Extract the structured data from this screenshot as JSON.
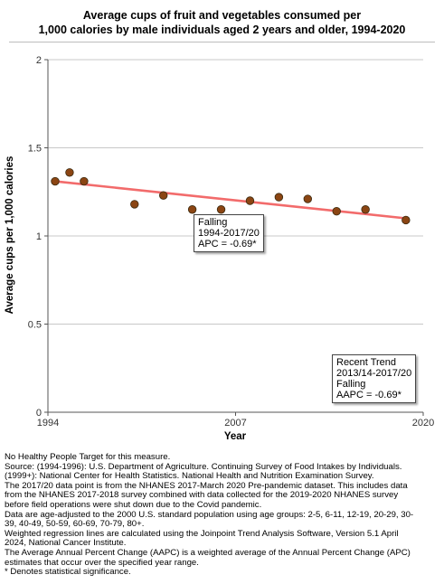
{
  "title": {
    "line1": "Average cups of fruit and vegetables consumed per",
    "line2": "1,000 calories by male individuals aged 2 years and older, 1994-2020"
  },
  "chart_data": {
    "type": "scatter",
    "title": "Average cups of fruit and vegetables consumed per 1,000 calories by male individuals aged 2 years and older, 1994-2020",
    "xlabel": "Year",
    "ylabel": "Average cups per 1,000 calories",
    "xlim": [
      1994,
      2020
    ],
    "ylim": [
      0,
      2
    ],
    "x_ticks": [
      "1994",
      "2007",
      "2020"
    ],
    "y_ticks": [
      "0",
      "0.5",
      "1",
      "1.5",
      "2"
    ],
    "grid": "horizontal",
    "series": [
      {
        "color": "#8b4513",
        "points": [
          {
            "x": 1994.5,
            "y": 1.31
          },
          {
            "x": 1995.5,
            "y": 1.36
          },
          {
            "x": 1996.5,
            "y": 1.31
          },
          {
            "x": 2000.0,
            "y": 1.18
          },
          {
            "x": 2002.0,
            "y": 1.23
          },
          {
            "x": 2004.0,
            "y": 1.15
          },
          {
            "x": 2006.0,
            "y": 1.15
          },
          {
            "x": 2008.0,
            "y": 1.2
          },
          {
            "x": 2010.0,
            "y": 1.22
          },
          {
            "x": 2012.0,
            "y": 1.21
          },
          {
            "x": 2014.0,
            "y": 1.14
          },
          {
            "x": 2016.0,
            "y": 1.15
          },
          {
            "x": 2018.8,
            "y": 1.09
          }
        ]
      }
    ],
    "trend_line": {
      "color": "#f26b6b",
      "start": {
        "x": 1994.5,
        "y": 1.31
      },
      "end": {
        "x": 2018.8,
        "y": 1.1
      }
    },
    "annotations": {
      "falling": {
        "line1": "Falling",
        "line2": "1994-2017/20",
        "line3": "APC = -0.69*"
      },
      "recent": {
        "line1": "Recent Trend",
        "line2": "2013/14-2017/20",
        "line3": "Falling",
        "line4": "AAPC = -0.69*"
      }
    }
  },
  "footnotes": [
    "No Healthy People Target for this measure.",
    "Source: (1994-1996): U.S. Department of Agriculture. Continuing Survey of Food Intakes by Individuals.",
    "(1999+): National Center for Health Statistics. National Health and Nutrition Examination Survey.",
    "The 2017/20 data point is from the NHANES 2017-March 2020 Pre-pandemic dataset. This includes data",
    "from the NHANES 2017-2018 survey combined with data collected for the 2019-2020 NHANES survey",
    "before field operations were shut down due to the Covid pandemic.",
    "Data are age-adjusted to the 2000 U.S. standard population using age groups: 2-5, 6-11, 12-19, 20-29, 30-",
    "39, 40-49, 50-59, 60-69, 70-79, 80+.",
    "Weighted regression lines are calculated using the Joinpoint Trend Analysis Software, Version 5.1 April",
    "2024, National Cancer Institute.",
    "The Average Annual Percent Change (AAPC) is a weighted average of the Annual Percent Change (APC)",
    "estimates that occur over the specified year range.",
    "* Denotes statistical significance."
  ]
}
